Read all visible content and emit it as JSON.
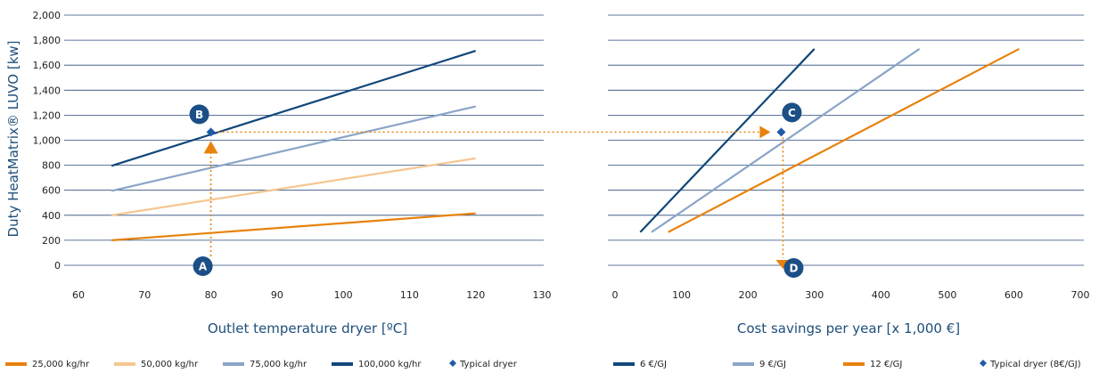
{
  "chart_data": [
    {
      "type": "line",
      "ylabel": "Duty HeatMatrix® LUVO [kw]",
      "xlabel": "Outlet temperature dryer [ºC]",
      "xlim": [
        60,
        130
      ],
      "ylim": [
        0,
        2000
      ],
      "x_ticks": [
        "60",
        "70",
        "80",
        "90",
        "100",
        "110",
        "120",
        "130"
      ],
      "y_ticks": [
        "0",
        "200",
        "400",
        "600",
        "800",
        "1,000",
        "1,200",
        "1,400",
        "1,600",
        "1,800",
        "2,000"
      ],
      "grid": "horizontal",
      "series": [
        {
          "name": "25,000 kg/hr",
          "color": "#e8820c",
          "x": [
            65,
            120
          ],
          "y": [
            200,
            415
          ]
        },
        {
          "name": "50,000 kg/hr",
          "color": "#f5c690",
          "x": [
            65,
            120
          ],
          "y": [
            400,
            855
          ]
        },
        {
          "name": "75,000 kg/hr",
          "color": "#8aa5c8",
          "x": [
            65,
            120
          ],
          "y": [
            595,
            1270
          ]
        },
        {
          "name": "100,000 kg/hr",
          "color": "#12477a",
          "x": [
            65,
            120
          ],
          "y": [
            795,
            1715
          ]
        }
      ],
      "typical_point": {
        "name": "Typical dryer",
        "x": 80,
        "y": 1065,
        "color": "#1f5aa8"
      },
      "annotations": [
        {
          "label": "A",
          "x": 80,
          "y": 0
        },
        {
          "label": "B",
          "x": 80,
          "y": 1065
        }
      ]
    },
    {
      "type": "line",
      "xlabel": "Cost savings per year [x 1,000 €]",
      "xlim": [
        0,
        700
      ],
      "ylim": [
        0,
        2000
      ],
      "x_ticks": [
        "0",
        "100",
        "200",
        "300",
        "400",
        "500",
        "600",
        "700"
      ],
      "grid": "horizontal",
      "series": [
        {
          "name": "6 €/GJ",
          "color": "#12477a",
          "x": [
            38,
            300
          ],
          "y": [
            265,
            1730
          ]
        },
        {
          "name": "9 €/GJ",
          "color": "#8aa5c8",
          "x": [
            55,
            458
          ],
          "y": [
            265,
            1730
          ]
        },
        {
          "name": "12 €/GJ",
          "color": "#e8820c",
          "x": [
            80,
            608
          ],
          "y": [
            265,
            1730
          ]
        }
      ],
      "typical_point": {
        "name": "Typical dryer (8€/GJ)",
        "x": 250,
        "y": 1065,
        "color": "#1f5aa8"
      },
      "annotations": [
        {
          "label": "C",
          "x": 250,
          "y": 1065
        },
        {
          "label": "D",
          "x": 250,
          "y": 0
        }
      ]
    }
  ],
  "legend": {
    "left": [
      {
        "label": "25,000 kg/hr",
        "color": "#e8820c",
        "kind": "line"
      },
      {
        "label": "50,000 kg/hr",
        "color": "#f5c690",
        "kind": "line"
      },
      {
        "label": "75,000 kg/hr",
        "color": "#8aa5c8",
        "kind": "line"
      },
      {
        "label": "100,000 kg/hr",
        "color": "#12477a",
        "kind": "line"
      },
      {
        "label": "Typical dryer",
        "color": "#1f5aa8",
        "kind": "diamond"
      }
    ],
    "right": [
      {
        "label": "6 €/GJ",
        "color": "#12477a",
        "kind": "line"
      },
      {
        "label": "9 €/GJ",
        "color": "#8aa5c8",
        "kind": "line"
      },
      {
        "label": "12 €/GJ",
        "color": "#e8820c",
        "kind": "line"
      },
      {
        "label": "Typical dryer (8€/GJ)",
        "color": "#1f5aa8",
        "kind": "diamond"
      }
    ]
  },
  "colors": {
    "grid": "#2a4a7a",
    "marker_circle": "#1b4f86",
    "arrow": "#e8820c",
    "axis_title": "#1f4e7a"
  }
}
